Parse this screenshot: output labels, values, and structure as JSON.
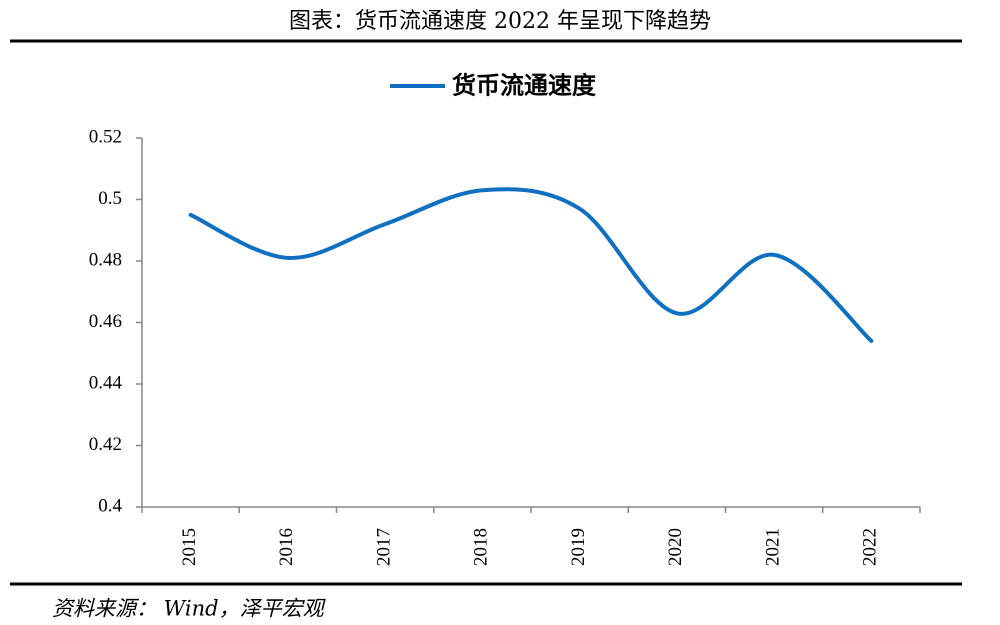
{
  "header": {
    "title": "图表：货币流通速度 2022 年呈现下降趋势"
  },
  "chart_data": {
    "type": "line",
    "categories": [
      "2015",
      "2016",
      "2017",
      "2018",
      "2019",
      "2020",
      "2021",
      "2022"
    ],
    "series": [
      {
        "name": "货币流通速度",
        "color": "#0f6fc0",
        "values": [
          0.495,
          0.481,
          0.492,
          0.503,
          0.497,
          0.463,
          0.482,
          0.454
        ]
      }
    ],
    "ylim": [
      0.4,
      0.52
    ],
    "yticks": [
      0.4,
      0.42,
      0.44,
      0.46,
      0.48,
      0.5,
      0.52
    ],
    "smooth": true
  },
  "footer": {
    "source": "资料来源： Wind，泽平宏观"
  }
}
